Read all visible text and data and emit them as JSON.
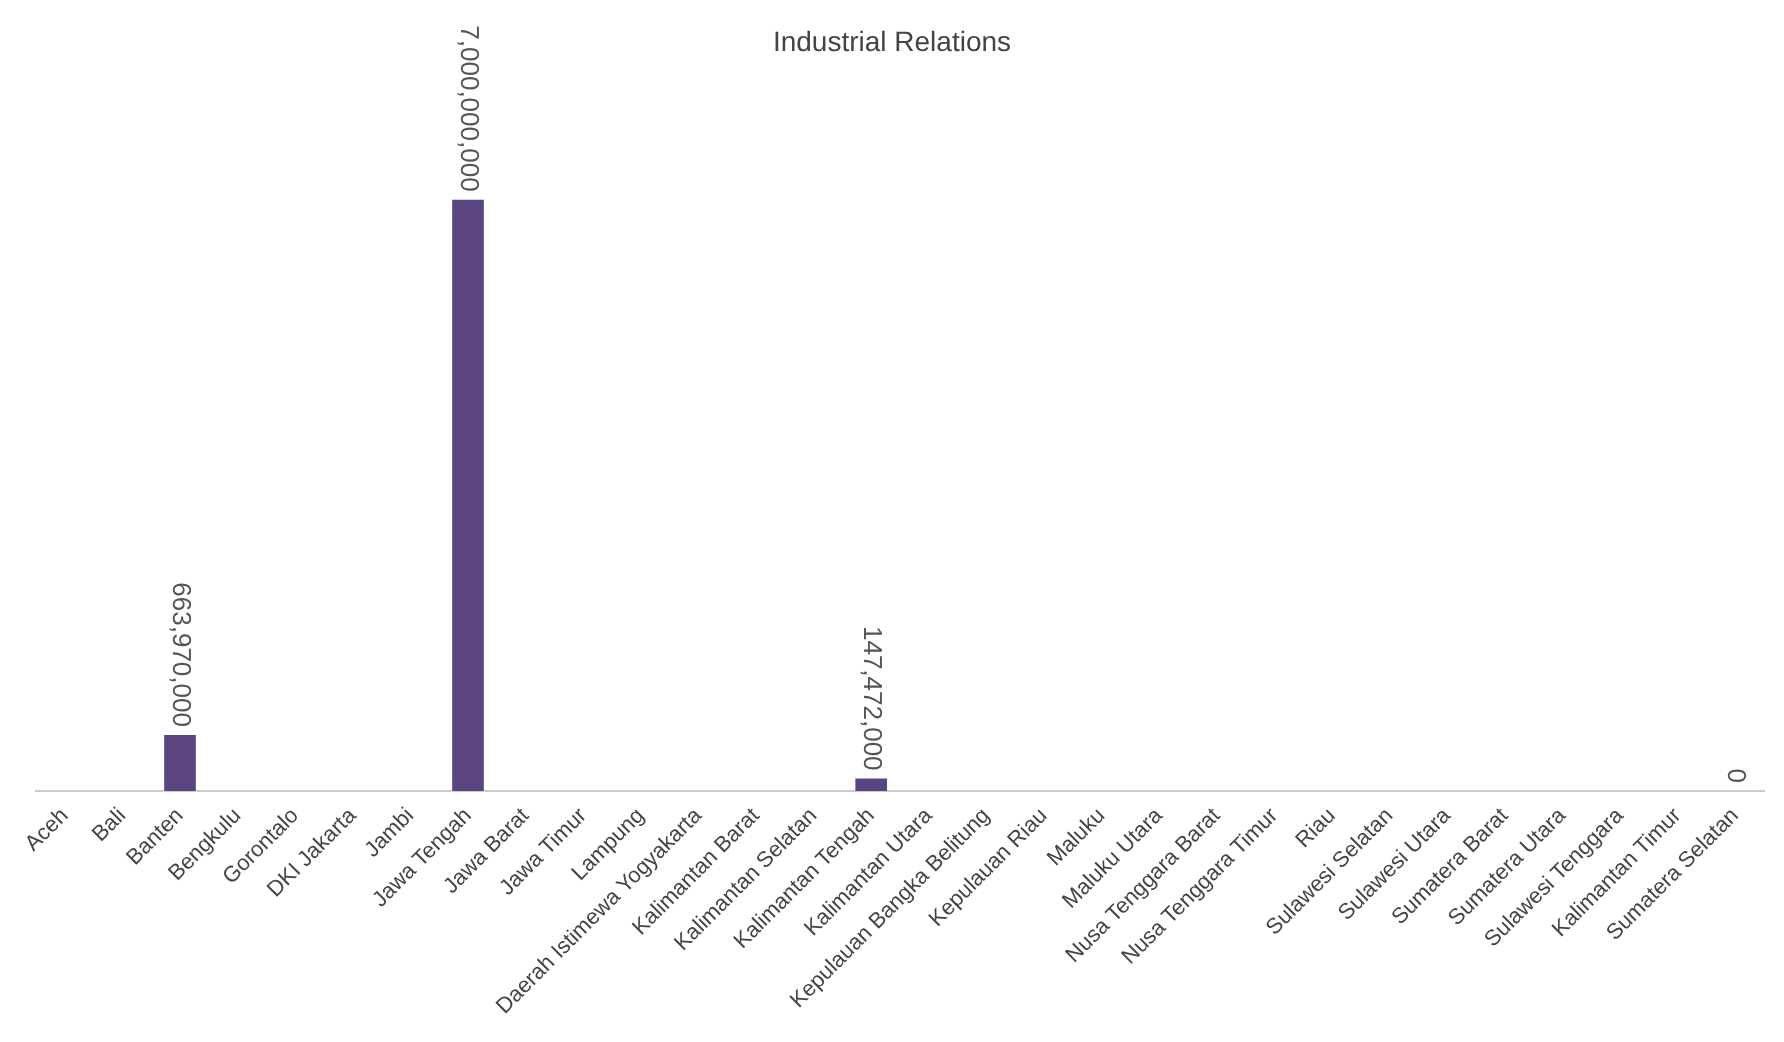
{
  "chart_data": {
    "type": "bar",
    "title": "Industrial Relations",
    "categories": [
      "Aceh",
      "Bali",
      "Banten",
      "Bengkulu",
      "Gorontalo",
      "DKI Jakarta",
      "Jambi",
      "Jawa Tengah",
      "Jawa Barat",
      "Jawa Timur",
      "Lampung",
      "Daerah Istimewa Yogyakarta",
      "Kalimantan Barat",
      "Kalimantan Selatan",
      "Kalimantan Tengah",
      "Kalimantan Utara",
      "Kepulauan Bangka Belitung",
      "Kepulauan Riau",
      "Maluku",
      "Maluku Utara",
      "Nusa Tenggara Barat",
      "Nusa Tenggara Timur",
      "Riau",
      "Sulawesi Selatan",
      "Sulawesi Utara",
      "Sumatera Barat",
      "Sumatera Utara",
      "Sulawesi Tenggara",
      "Kalimantan Timur",
      "Sumatera Selatan"
    ],
    "values": [
      0,
      0,
      663970000,
      0,
      0,
      0,
      0,
      7000000000,
      0,
      0,
      0,
      0,
      0,
      0,
      147472000,
      0,
      0,
      0,
      0,
      0,
      0,
      0,
      0,
      0,
      0,
      0,
      0,
      0,
      0,
      0
    ],
    "value_labels": [
      null,
      null,
      "663,970,000",
      null,
      null,
      null,
      null,
      "7,000,000,000",
      null,
      null,
      null,
      null,
      null,
      null,
      "147,472,000",
      null,
      null,
      null,
      null,
      null,
      null,
      null,
      null,
      null,
      null,
      null,
      null,
      null,
      null,
      "0"
    ],
    "color": "#5b4580",
    "relative": false,
    "grid": false,
    "legend": false
  }
}
